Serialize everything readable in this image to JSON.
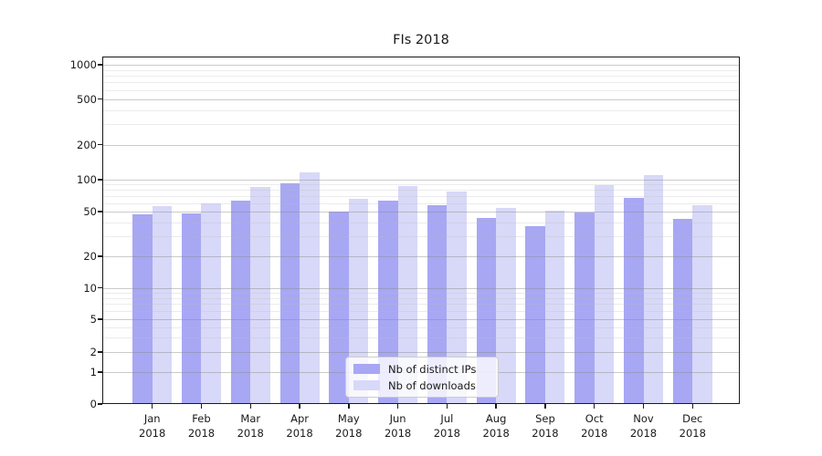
{
  "chart_data": {
    "type": "bar",
    "title": "FIs 2018",
    "categories": [
      "Jan",
      "Feb",
      "Mar",
      "Apr",
      "May",
      "Jun",
      "Jul",
      "Aug",
      "Sep",
      "Oct",
      "Nov",
      "Dec"
    ],
    "category_year": "2018",
    "series": [
      {
        "name": "Nb of distinct IPs",
        "color": "#a7a7f4",
        "values": [
          47,
          48,
          63,
          93,
          50,
          64,
          58,
          44,
          37,
          49,
          67,
          43
        ]
      },
      {
        "name": "Nb of downloads",
        "color": "#d8d8f8",
        "values": [
          56,
          60,
          85,
          115,
          66,
          87,
          77,
          54,
          51,
          88,
          110,
          58
        ]
      }
    ],
    "yscale": "symlog",
    "yticks": [
      0,
      1,
      2,
      5,
      10,
      20,
      50,
      100,
      200,
      500,
      1000
    ],
    "ytick_labels": [
      "0",
      "1",
      "2",
      "5",
      "10",
      "20",
      "50",
      "100",
      "200",
      "500",
      "1000"
    ],
    "minor_gridlines": [
      3,
      4,
      6,
      7,
      8,
      9,
      30,
      40,
      60,
      70,
      80,
      90,
      300,
      400,
      600,
      700,
      800,
      900
    ],
    "ylim": [
      0,
      1180
    ],
    "grid": "major+minor, drawn over bars",
    "legend_position": "inside lower-center",
    "colors": {
      "background": "#ffffff",
      "spine": "#1a1a1a",
      "major_grid": "#8c8c8c",
      "minor_grid": "#bebebe",
      "legend_border": "#cccccc"
    }
  }
}
